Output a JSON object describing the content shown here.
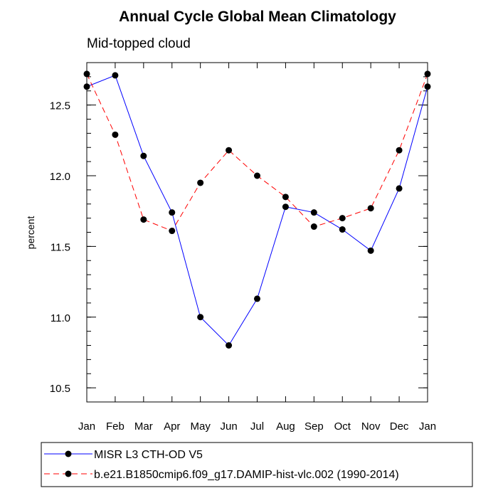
{
  "chart_data": {
    "type": "line",
    "title": "Annual Cycle Global Mean Climatology",
    "subtitle": "Mid-topped cloud",
    "xlabel": "",
    "ylabel": "percent",
    "categories": [
      "Jan",
      "Feb",
      "Mar",
      "Apr",
      "May",
      "Jun",
      "Jul",
      "Aug",
      "Sep",
      "Oct",
      "Nov",
      "Dec",
      "Jan"
    ],
    "ylim": [
      10.4,
      12.8
    ],
    "yticks": [
      10.5,
      11.0,
      11.5,
      12.0,
      12.5
    ],
    "ytick_labels": [
      "10.5",
      "11.0",
      "11.5",
      "12.0",
      "12.5"
    ],
    "grid": false,
    "legend_position": "bottom",
    "series": [
      {
        "name": "MISR L3 CTH-OD V5",
        "color": "#0000ff",
        "dash": "solid",
        "values": [
          12.63,
          12.71,
          12.14,
          11.74,
          11.0,
          10.8,
          11.13,
          11.78,
          11.74,
          11.62,
          11.47,
          11.91,
          12.63
        ]
      },
      {
        "name": "b.e21.B1850cmip6.f09_g17.DAMIP-hist-vlc.002 (1990-2014)",
        "color": "#ff0000",
        "dash": "dashed",
        "values": [
          12.72,
          12.29,
          11.69,
          11.61,
          11.95,
          12.18,
          12.0,
          11.85,
          11.64,
          11.7,
          11.77,
          12.18,
          12.72
        ]
      }
    ]
  }
}
